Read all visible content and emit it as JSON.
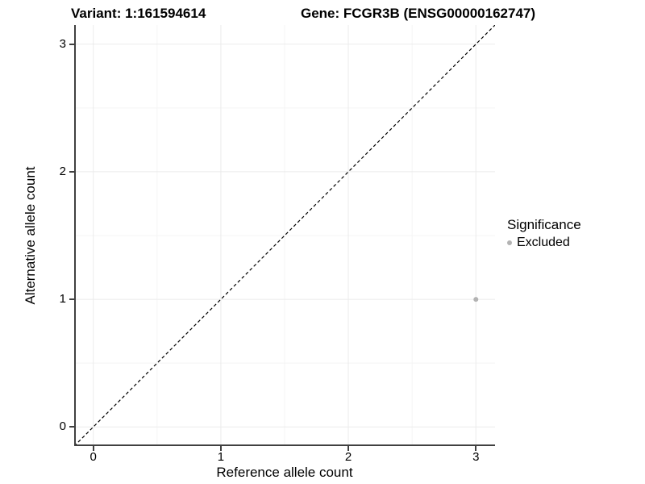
{
  "title": {
    "variant": "Variant: 1:161594614",
    "gene": "Gene: FCGR3B (ENSG00000162747)"
  },
  "axes": {
    "x_label": "Reference allele count",
    "y_label": "Alternative allele count"
  },
  "legend": {
    "title": "Significance",
    "items": [
      {
        "label": "Excluded",
        "color": "#B3B3B3"
      }
    ]
  },
  "colors": {
    "axis_line": "#404040",
    "grid_major": "#EBEBEB",
    "grid_minor": "#F4F4F4",
    "reference_line": "#000000",
    "point_excluded": "#B3B3B3",
    "text": "#000000",
    "background": "#FFFFFF"
  },
  "chart_data": {
    "type": "scatter",
    "title": "Variant: 1:161594614    Gene: FCGR3B (ENSG00000162747)",
    "xlabel": "Reference allele count",
    "ylabel": "Alternative allele count",
    "xlim": [
      -0.15,
      3.15
    ],
    "ylim": [
      -0.15,
      3.15
    ],
    "x_ticks": [
      0,
      1,
      2,
      3
    ],
    "y_ticks": [
      0,
      1,
      2,
      3
    ],
    "x_minor_ticks": [
      0.5,
      1.5,
      2.5
    ],
    "y_minor_ticks": [
      0.5,
      1.5,
      2.5
    ],
    "grid": "major+minor",
    "legend_title": "Significance",
    "legend_position": "right",
    "series": [
      {
        "name": "Excluded",
        "color": "#B3B3B3",
        "marker": "circle",
        "marker_radius_px": 3,
        "points": [
          {
            "x": 3,
            "y": 1
          }
        ]
      }
    ],
    "reference_line": {
      "type": "abline",
      "slope": 1,
      "intercept": 0,
      "linestyle": "dashed",
      "color": "#000000"
    }
  }
}
